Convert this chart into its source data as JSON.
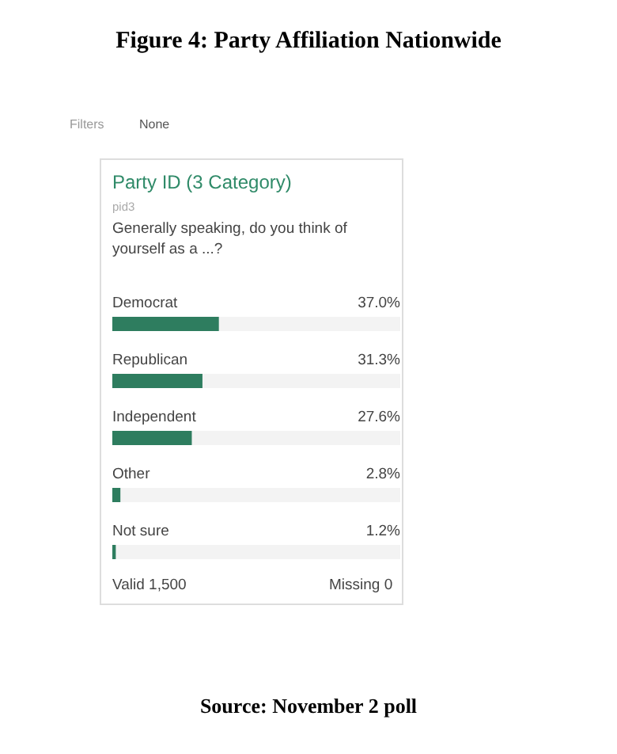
{
  "chart_data": {
    "type": "bar",
    "orientation": "horizontal",
    "title": "Figure 4: Party Affiliation Nationwide",
    "subtitle": "Party ID (3 Category)",
    "annotations": [
      "Filters",
      "None",
      "pid3",
      "Generally speaking, do you think of yourself as a ...?",
      "Valid 1,500",
      "Missing 0",
      "Source: November 2 poll"
    ],
    "categories": [
      "Democrat",
      "Republican",
      "Independent",
      "Other",
      "Not sure"
    ],
    "values": [
      37.0,
      31.3,
      27.6,
      2.8,
      1.2
    ],
    "value_labels": [
      "37.0%",
      "31.3%",
      "27.6%",
      "2.8%",
      "1.2%"
    ],
    "color": "#2e7d5f",
    "xlim": [
      0,
      100
    ]
  }
}
